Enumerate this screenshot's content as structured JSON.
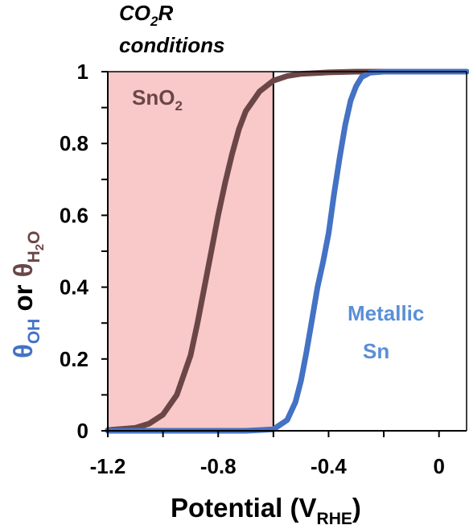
{
  "chart_data": {
    "type": "line",
    "annotation": {
      "line1_prefix": "CO",
      "line1_sub": "2",
      "line1_suffix": "R",
      "line2": "conditions"
    },
    "xlabel": {
      "main": "Potential (V",
      "sub": "RHE",
      "close": ")"
    },
    "ylabel": {
      "theta_oh": "θ",
      "theta_oh_sub": "OH",
      "or": " or ",
      "theta_h2o": "θ",
      "theta_h2o_sub": "H",
      "theta_h2o_sub2": "2",
      "theta_h2o_sub3": "O"
    },
    "xlim": [
      -1.2,
      0.1
    ],
    "ylim": [
      0,
      1
    ],
    "x_ticks": [
      -1.2,
      -0.8,
      -0.4,
      0
    ],
    "x_tick_labels": [
      "-1.2",
      "-0.8",
      "-0.4",
      "0"
    ],
    "x_minor_ticks": [
      -1.0,
      -0.6,
      -0.2
    ],
    "y_ticks": [
      0,
      0.2,
      0.4,
      0.6,
      0.8,
      1
    ],
    "y_tick_labels": [
      "0",
      "0.2",
      "0.4",
      "0.6",
      "0.8",
      "1"
    ],
    "y_minor_ticks": [
      0.1,
      0.3,
      0.5,
      0.7,
      0.9
    ],
    "shaded_region": {
      "x": [
        -1.2,
        -0.6
      ],
      "color": "#f9c8c8"
    },
    "series": [
      {
        "label_main": "SnO",
        "label_sub": "2",
        "color": "#6b4646",
        "x": [
          -1.2,
          -1.1,
          -1.05,
          -1.0,
          -0.95,
          -0.9,
          -0.875,
          -0.85,
          -0.825,
          -0.8,
          -0.775,
          -0.75,
          -0.725,
          -0.7,
          -0.65,
          -0.6,
          -0.55,
          -0.5,
          -0.4,
          -0.3,
          -0.2,
          0,
          0.1
        ],
        "y": [
          0.002,
          0.008,
          0.02,
          0.045,
          0.1,
          0.21,
          0.3,
          0.4,
          0.5,
          0.6,
          0.69,
          0.77,
          0.84,
          0.89,
          0.945,
          0.975,
          0.988,
          0.994,
          0.998,
          1.0,
          1.0,
          1.0,
          1.0
        ]
      },
      {
        "label_main": "Metallic",
        "label_sub": "Sn",
        "color": "#4472c4",
        "label_color": "#5b8fd6",
        "x": [
          -1.2,
          -0.7,
          -0.6,
          -0.55,
          -0.52,
          -0.5,
          -0.48,
          -0.46,
          -0.44,
          -0.42,
          -0.4,
          -0.38,
          -0.36,
          -0.34,
          -0.32,
          -0.3,
          -0.28,
          -0.25,
          -0.2,
          0,
          0.1
        ],
        "y": [
          0.0,
          0.0,
          0.004,
          0.03,
          0.08,
          0.14,
          0.22,
          0.31,
          0.4,
          0.47,
          0.55,
          0.66,
          0.76,
          0.85,
          0.92,
          0.96,
          0.985,
          0.997,
          1.0,
          1.0,
          1.0
        ]
      }
    ]
  }
}
